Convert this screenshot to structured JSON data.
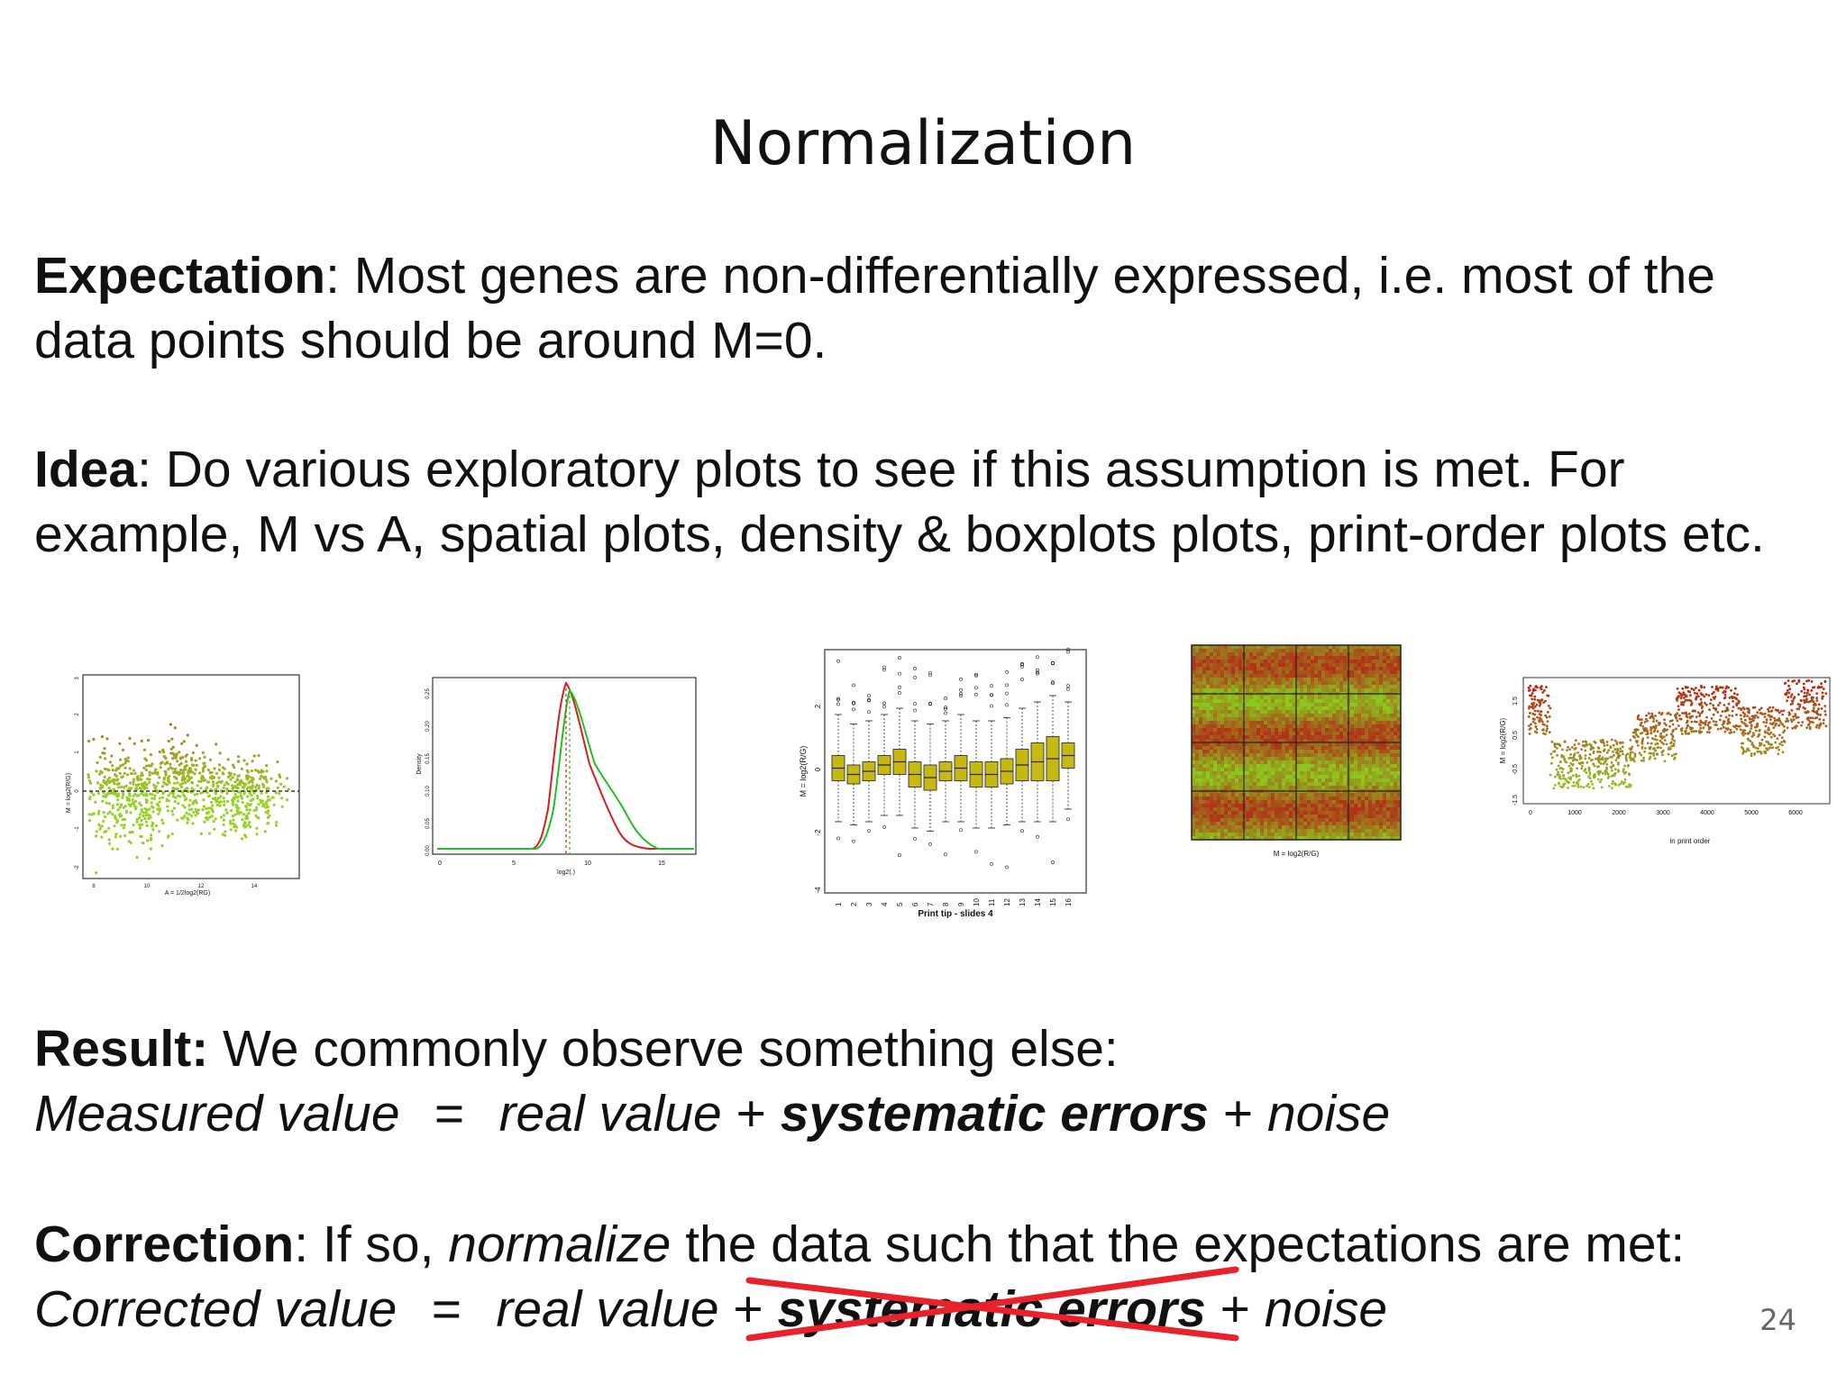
{
  "title": "Normalization",
  "expectation": {
    "label": "Expectation",
    "text": ": Most genes are non-differentially expressed, i.e. most of the data points should be around M=0."
  },
  "idea": {
    "label": "Idea",
    "text": ": Do various exploratory plots to see if this assumption is met. For example, M vs A, spatial plots, density & boxplots plots, print-order plots etc."
  },
  "result": {
    "label": "Result:",
    "text": " We commonly observe something else:",
    "formula": {
      "lhs": "Measured value",
      "eq": "=",
      "real": "real value",
      "plus1": " + ",
      "sys": "systematic errors",
      "plus2": " + ",
      "noise": "noise"
    }
  },
  "correction": {
    "label": "Correction",
    "text_before": ": If so, ",
    "italic_word": "normalize",
    "text_after": " the data such that the expectations are met:",
    "formula": {
      "lhs": "Corrected value",
      "eq": "=",
      "real": "real value",
      "plus1": " + ",
      "sys": "systematic errors",
      "plus2": " + ",
      "noise": "noise"
    }
  },
  "page_number": "24",
  "strike_color": "#e8212a",
  "plots": {
    "ma_plot": {
      "ylabel": "M = log2(R/G)",
      "xlabel": "A = 1/2log2(RG)",
      "xticks": [
        "8",
        "10",
        "12",
        "14"
      ],
      "yticks": [
        "3",
        "2",
        "1",
        "0",
        "-1",
        "-2"
      ]
    },
    "density_plot": {
      "ylabel": "Density",
      "xlabel": "log2(.)",
      "xticks": [
        "0",
        "5",
        "10",
        "15"
      ],
      "yticks": [
        "0.25",
        "0.20",
        "0.15",
        "0.10",
        "0.05",
        "0.00"
      ]
    },
    "boxplot": {
      "ylabel": "M = log2(R/G)",
      "xlabel": "Print tip - slides 4",
      "xticks": [
        "1",
        "2",
        "3",
        "4",
        "5",
        "6",
        "7",
        "8",
        "9",
        "10",
        "11",
        "12",
        "13",
        "14",
        "15",
        "16"
      ],
      "yticks": [
        "2",
        "0",
        "-2",
        "-4"
      ]
    },
    "spatial_plot": {
      "xlabel": "M = log2(R/G)"
    },
    "print_order_plot": {
      "ylabel": "M = log2(R/G)",
      "xlabel": "in print order",
      "xticks": [
        "0",
        "1000",
        "2000",
        "3000",
        "4000",
        "5000",
        "6000"
      ],
      "yticks": [
        "1.5",
        "0.5",
        "-0.5",
        "-1.5"
      ]
    }
  }
}
